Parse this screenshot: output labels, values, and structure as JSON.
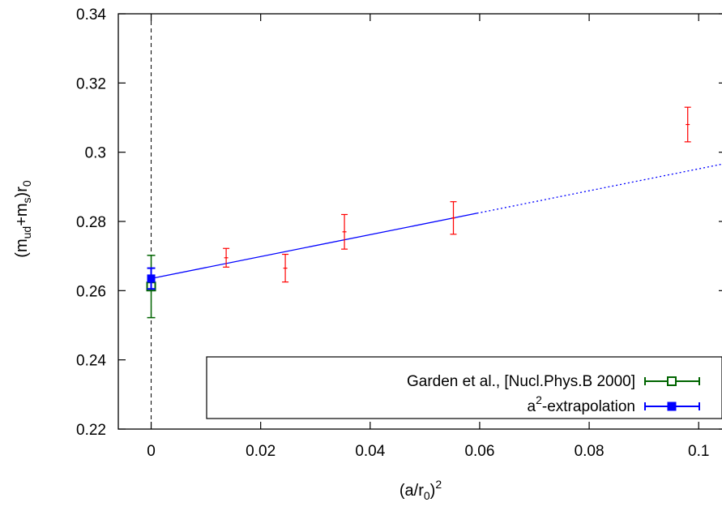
{
  "chart_data": {
    "type": "scatter",
    "xlabel": {
      "base": "(a/r",
      "sub": "0",
      "close": ")",
      "sup": "2"
    },
    "ylabel": {
      "p1": "(m",
      "sub1": "ud",
      "p2": "+m",
      "sub2": "s",
      "p3": ")r",
      "sub3": "0"
    },
    "xlim": [
      -0.006,
      0.105
    ],
    "ylim": [
      0.22,
      0.34
    ],
    "xticks": [
      {
        "value": 0,
        "label": "0"
      },
      {
        "value": 0.02,
        "label": "0.02"
      },
      {
        "value": 0.04,
        "label": "0.04"
      },
      {
        "value": 0.06,
        "label": "0.06"
      },
      {
        "value": 0.08,
        "label": "0.08"
      },
      {
        "value": 0.1,
        "label": "0.1"
      }
    ],
    "yticks": [
      {
        "value": 0.22,
        "label": "0.22"
      },
      {
        "value": 0.24,
        "label": "0.24"
      },
      {
        "value": 0.26,
        "label": "0.26"
      },
      {
        "value": 0.28,
        "label": "0.28"
      },
      {
        "value": 0.3,
        "label": "0.3"
      },
      {
        "value": 0.32,
        "label": "0.32"
      },
      {
        "value": 0.34,
        "label": "0.34"
      }
    ],
    "vline_x": 0,
    "colors": {
      "data": "#ff0000",
      "garden": "#006400",
      "fit": "#0000ff",
      "vline": "#000000"
    },
    "series": [
      {
        "style": "errorbars",
        "points": [
          {
            "x": 0.0137,
            "y": 0.2695,
            "err": 0.0027
          },
          {
            "x": 0.0245,
            "y": 0.2665,
            "err": 0.004
          },
          {
            "x": 0.0353,
            "y": 0.277,
            "err": 0.005
          },
          {
            "x": 0.0552,
            "y": 0.281,
            "err": 0.0047
          },
          {
            "x": 0.098,
            "y": 0.308,
            "err": 0.005
          }
        ]
      },
      {
        "name": "Garden et al., [Nucl.Phys.B 2000]",
        "style": "open-square",
        "points": [
          {
            "x": 0,
            "y": 0.2612,
            "err": 0.009
          }
        ]
      },
      {
        "name_parts": {
          "base": "a",
          "sup": "2",
          "rest": "-extrapolation"
        },
        "style": "filled-square",
        "points": [
          {
            "x": 0,
            "y": 0.2635,
            "err": 0.003
          }
        ],
        "fit_line": {
          "intercept": 0.2635,
          "slope": 0.317,
          "solid_to": 0.0595,
          "dotted_to": 0.105
        }
      }
    ],
    "legend": {
      "position": "bottom-right"
    }
  }
}
